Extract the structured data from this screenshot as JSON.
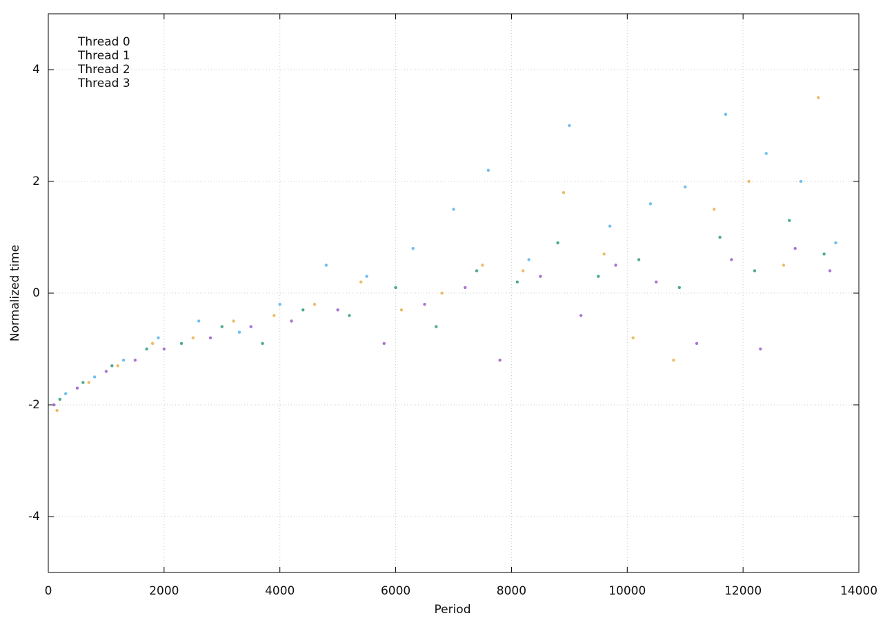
{
  "chart_data": {
    "type": "scatter",
    "x_label": "Period",
    "y_label": "Normalized time",
    "xlim": [
      0,
      14000
    ],
    "xticks": [
      0,
      2000,
      4000,
      6000,
      8000,
      10000,
      12000,
      14000
    ],
    "ylim": [
      -5,
      5
    ],
    "yticks": [
      -4,
      -2,
      0,
      2,
      4
    ],
    "grid": true,
    "legend": "top-left",
    "series": [
      {
        "name": "Thread 0",
        "color": "#9b59d0",
        "x": [
          100,
          500,
          1000,
          1500,
          2000,
          2800,
          3500,
          4200,
          5000,
          5800,
          6500,
          7200,
          7800,
          8500,
          9200,
          9800,
          10500,
          11200,
          11800,
          12300,
          12900,
          13500
        ],
        "values": [
          -2.0,
          -1.7,
          -1.4,
          -1.2,
          -1.0,
          -0.8,
          -0.6,
          -0.5,
          -0.3,
          -0.9,
          -0.2,
          0.1,
          -1.2,
          0.3,
          -0.4,
          0.5,
          0.2,
          -0.9,
          0.6,
          -1.0,
          0.8,
          0.4
        ]
      },
      {
        "name": "Thread 1",
        "color": "#2a9d6e",
        "x": [
          200,
          600,
          1100,
          1700,
          2300,
          3000,
          3700,
          4400,
          5200,
          6000,
          6700,
          7400,
          8100,
          8800,
          9500,
          10200,
          10900,
          11600,
          12200,
          12800,
          13400
        ],
        "values": [
          -1.9,
          -1.6,
          -1.3,
          -1.0,
          -0.9,
          -0.6,
          -0.9,
          -0.3,
          -0.4,
          0.1,
          -0.6,
          0.4,
          0.2,
          0.9,
          0.3,
          0.6,
          0.1,
          1.0,
          0.4,
          1.3,
          0.7
        ]
      },
      {
        "name": "Thread 2",
        "color": "#56b4e9",
        "x": [
          300,
          800,
          1300,
          1900,
          2600,
          3300,
          4000,
          4800,
          5500,
          6300,
          7000,
          7600,
          8300,
          9000,
          9700,
          10400,
          11000,
          11700,
          12400,
          13000,
          13600
        ],
        "values": [
          -1.8,
          -1.5,
          -1.2,
          -0.8,
          -0.5,
          -0.7,
          -0.2,
          0.5,
          0.3,
          0.8,
          1.5,
          2.2,
          0.6,
          3.0,
          1.2,
          1.6,
          1.9,
          3.2,
          2.5,
          2.0,
          0.9
        ]
      },
      {
        "name": "Thread 3",
        "color": "#e6b04a",
        "x": [
          150,
          700,
          1200,
          1800,
          2500,
          3200,
          3900,
          4600,
          5400,
          6100,
          6800,
          7500,
          8200,
          8900,
          9600,
          10100,
          10800,
          11500,
          12100,
          12700,
          13300
        ],
        "values": [
          -2.1,
          -1.6,
          -1.3,
          -0.9,
          -0.8,
          -0.5,
          -0.4,
          -0.2,
          0.2,
          -0.3,
          0.0,
          0.5,
          0.4,
          1.8,
          0.7,
          -0.8,
          -1.2,
          1.5,
          2.0,
          0.5,
          3.5
        ]
      }
    ]
  }
}
